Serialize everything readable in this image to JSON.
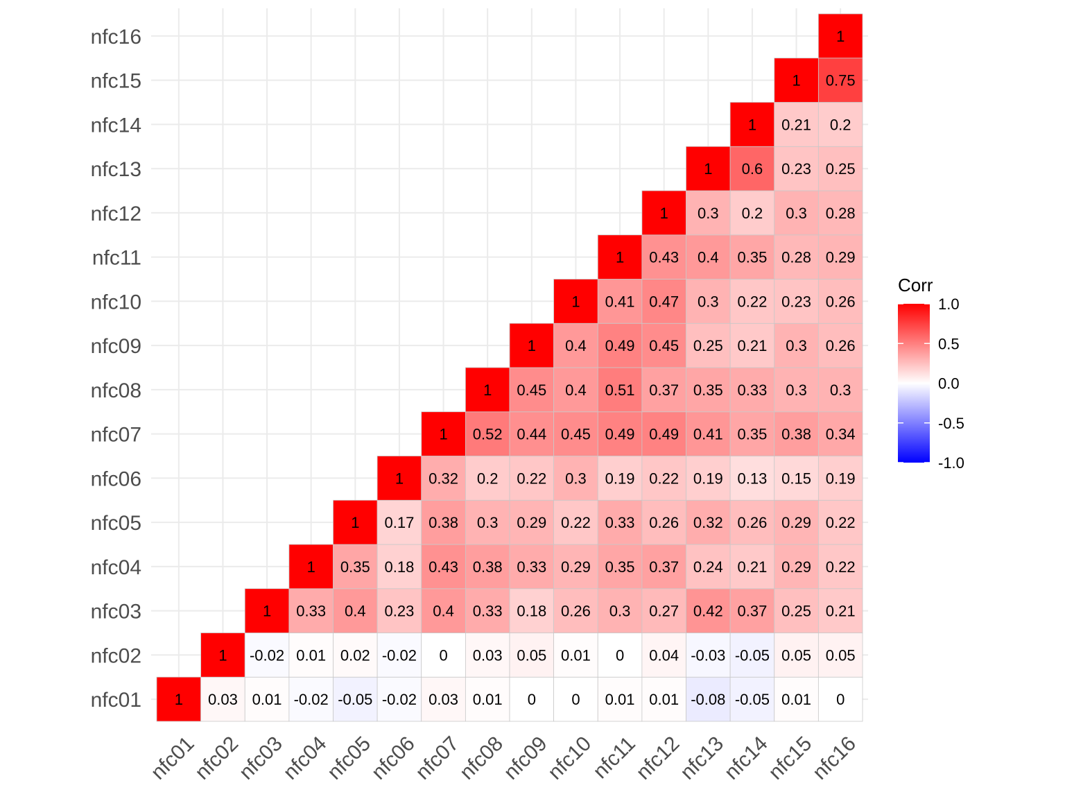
{
  "chart_data": {
    "type": "heatmap",
    "title": "",
    "xlabel": "",
    "ylabel": "",
    "variables": [
      "nfc01",
      "nfc02",
      "nfc03",
      "nfc04",
      "nfc05",
      "nfc06",
      "nfc07",
      "nfc08",
      "nfc09",
      "nfc10",
      "nfc11",
      "nfc12",
      "nfc13",
      "nfc14",
      "nfc15",
      "nfc16"
    ],
    "matrix_note": "rows[i] = correlations of variables[i] with variables[i..15]",
    "rows": [
      [
        1,
        0.03,
        0.01,
        -0.02,
        -0.05,
        -0.02,
        0.03,
        0.01,
        0,
        0,
        0.01,
        0.01,
        -0.08,
        -0.05,
        0.01,
        0
      ],
      [
        1,
        -0.02,
        0.01,
        0.02,
        -0.02,
        0,
        0.03,
        0.05,
        0.01,
        0,
        0.04,
        -0.03,
        -0.05,
        0.05,
        0.05
      ],
      [
        1,
        0.33,
        0.4,
        0.23,
        0.4,
        0.33,
        0.18,
        0.26,
        0.3,
        0.27,
        0.42,
        0.37,
        0.25,
        0.21
      ],
      [
        1,
        0.35,
        0.18,
        0.43,
        0.38,
        0.33,
        0.29,
        0.35,
        0.37,
        0.24,
        0.21,
        0.29,
        0.22
      ],
      [
        1,
        0.17,
        0.38,
        0.3,
        0.29,
        0.22,
        0.33,
        0.26,
        0.32,
        0.26,
        0.29,
        0.22
      ],
      [
        1,
        0.32,
        0.2,
        0.22,
        0.3,
        0.19,
        0.22,
        0.19,
        0.13,
        0.15,
        0.19
      ],
      [
        1,
        0.52,
        0.44,
        0.45,
        0.49,
        0.49,
        0.41,
        0.35,
        0.38,
        0.34
      ],
      [
        1,
        0.45,
        0.4,
        0.51,
        0.37,
        0.35,
        0.33,
        0.3,
        0.3
      ],
      [
        1,
        0.4,
        0.49,
        0.45,
        0.25,
        0.21,
        0.3,
        0.26
      ],
      [
        1,
        0.41,
        0.47,
        0.3,
        0.22,
        0.23,
        0.26
      ],
      [
        1,
        0.43,
        0.4,
        0.35,
        0.28,
        0.29
      ],
      [
        1,
        0.3,
        0.2,
        0.3,
        0.28
      ],
      [
        1,
        0.6,
        0.23,
        0.25
      ],
      [
        1,
        0.21,
        0.2
      ],
      [
        1,
        0.75
      ],
      [
        1
      ]
    ],
    "legend": {
      "title": "Corr",
      "ticks": [
        "1.0",
        "0.5",
        "0.0",
        "-0.5",
        "-1.0"
      ],
      "tick_values": [
        1,
        0.5,
        0,
        -0.5,
        -1
      ],
      "placement": "right"
    },
    "colors": {
      "low": "#0000FF",
      "mid": "#FFFFFF",
      "high": "#FF0000"
    },
    "limits": [
      -1,
      1
    ],
    "grid": true
  }
}
